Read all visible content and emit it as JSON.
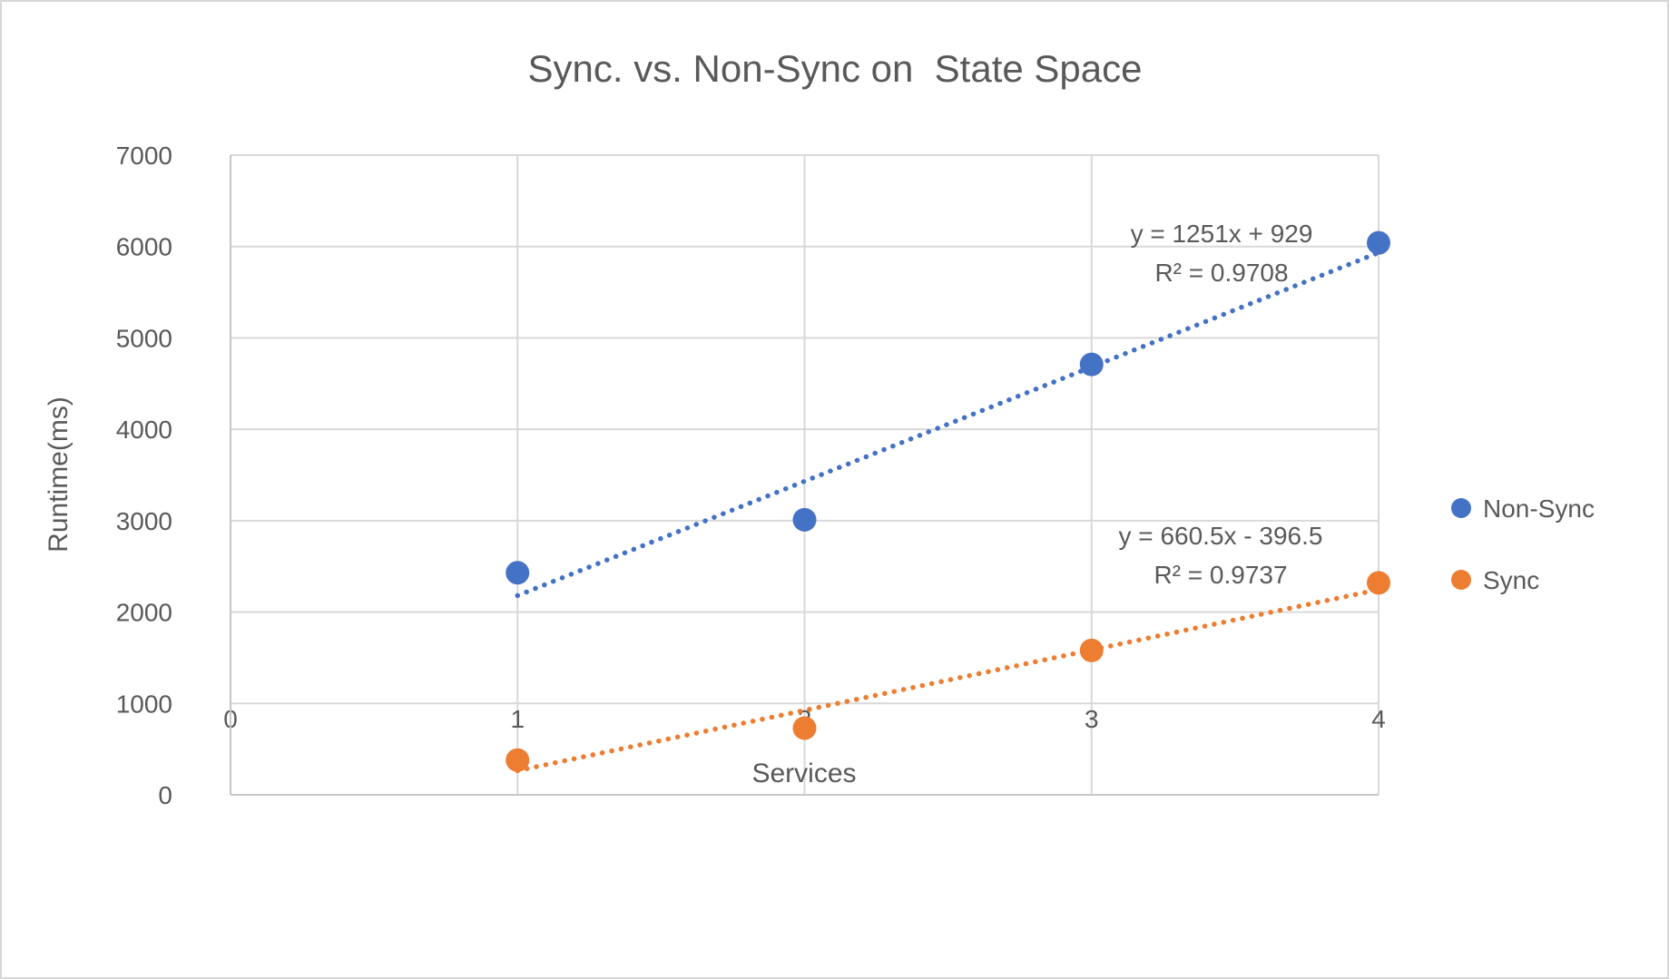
{
  "chart_data": {
    "type": "scatter",
    "title": "Sync. vs. Non-Sync on  State Space",
    "xlabel": "Services",
    "ylabel": "Runtime(ms)",
    "xlim": [
      0,
      4
    ],
    "ylim": [
      0,
      7000
    ],
    "x_ticks": [
      0,
      1,
      2,
      3,
      4
    ],
    "y_ticks": [
      0,
      1000,
      2000,
      3000,
      4000,
      5000,
      6000,
      7000
    ],
    "grid": true,
    "legend_position": "right",
    "x": [
      1,
      2,
      3,
      4
    ],
    "series": [
      {
        "name": "Non-Sync",
        "color": "#4472C4",
        "values": [
          2430,
          3010,
          4710,
          6040
        ],
        "trendline": {
          "slope": 1251,
          "intercept": 929,
          "equation": "y = 1251x + 929",
          "r_squared_label": "R² = 0.9708",
          "style": "dotted"
        }
      },
      {
        "name": "Sync",
        "color": "#ED7D31",
        "values": [
          380,
          730,
          1580,
          2320
        ],
        "trendline": {
          "slope": 660.5,
          "intercept": -396.5,
          "equation": "y = 660.5x - 396.5",
          "r_squared_label": "R² = 0.9737",
          "style": "dotted"
        }
      }
    ],
    "colors": {
      "text": "#595959",
      "gridline": "#D9D9D9",
      "axis_line": "#C6C6C6",
      "background": "#FFFFFF"
    }
  }
}
